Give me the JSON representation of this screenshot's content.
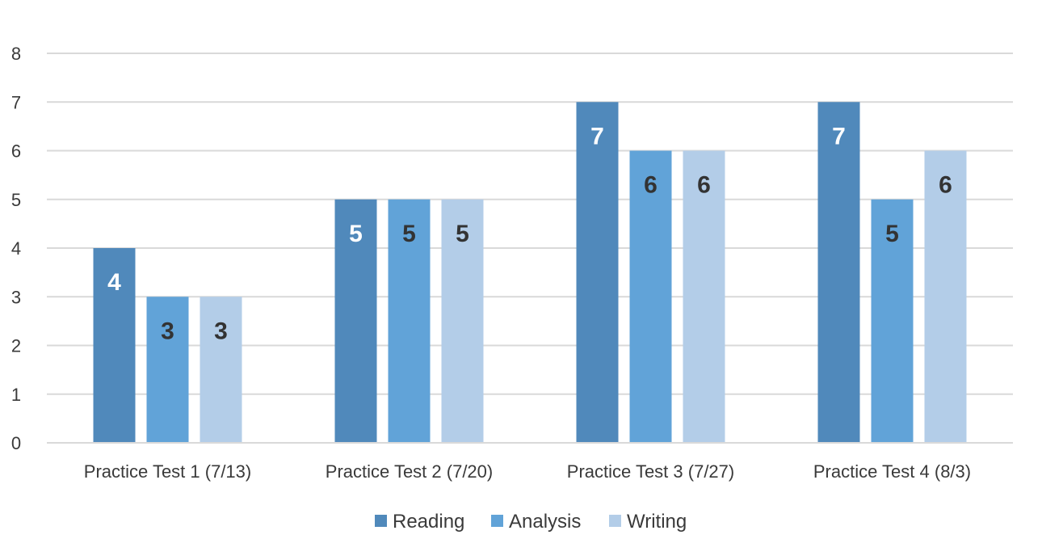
{
  "chart_data": {
    "type": "bar",
    "categories": [
      "Practice Test 1 (7/13)",
      "Practice Test 2 (7/20)",
      "Practice Test 3 (7/27)",
      "Practice Test 4 (8/3)"
    ],
    "series": [
      {
        "name": "Reading",
        "values": [
          4,
          5,
          7,
          7
        ],
        "color": "#5089bb",
        "label_color": "#ffffff"
      },
      {
        "name": "Analysis",
        "values": [
          3,
          5,
          6,
          5
        ],
        "color": "#61a3d8",
        "label_color": "#333333"
      },
      {
        "name": "Writing",
        "values": [
          3,
          5,
          6,
          6
        ],
        "color": "#b3cde8",
        "label_color": "#333333"
      }
    ],
    "ylim": [
      0,
      8
    ],
    "yticks": [
      "0",
      "1",
      "2",
      "3",
      "4",
      "5",
      "6",
      "7",
      "8"
    ],
    "grid": true,
    "legend_position": "bottom",
    "data_labels": true,
    "xlabel": "",
    "ylabel": "",
    "title": ""
  }
}
